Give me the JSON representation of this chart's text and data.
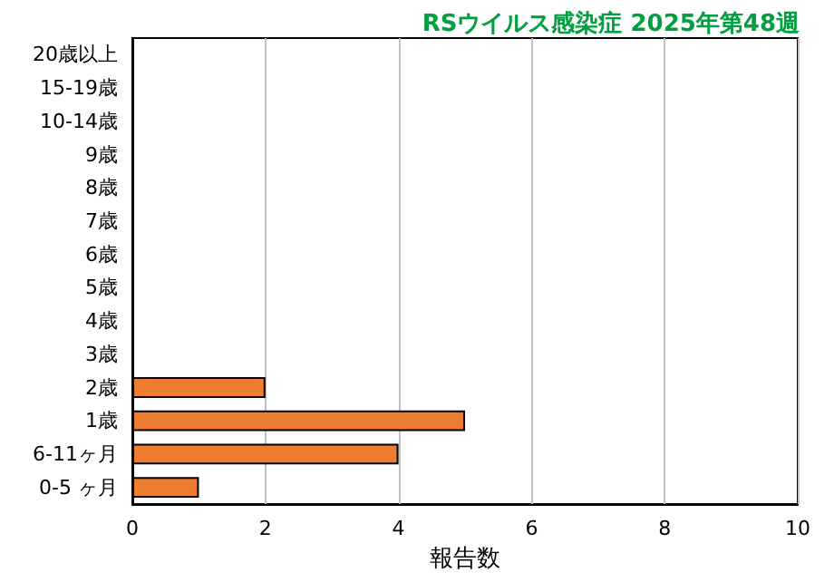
{
  "chart_data": {
    "type": "bar",
    "orientation": "horizontal",
    "title": "RSウイルス感染症 2025年第48週",
    "xlabel": "報告数",
    "categories": [
      "20歳以上",
      "15-19歳",
      "10-14歳",
      "9歳",
      "8歳",
      "7歳",
      "6歳",
      "5歳",
      "4歳",
      "3歳",
      "2歳",
      "1歳",
      "6-11ヶ月",
      "0-5 ヶ月"
    ],
    "values": [
      0,
      0,
      0,
      0,
      0,
      0,
      0,
      0,
      0,
      0,
      2,
      5,
      4,
      1
    ],
    "color": "#ed7d31",
    "xlim": [
      0,
      10
    ],
    "xticks": [
      0,
      2,
      4,
      6,
      8,
      10
    ],
    "grid": "x"
  }
}
